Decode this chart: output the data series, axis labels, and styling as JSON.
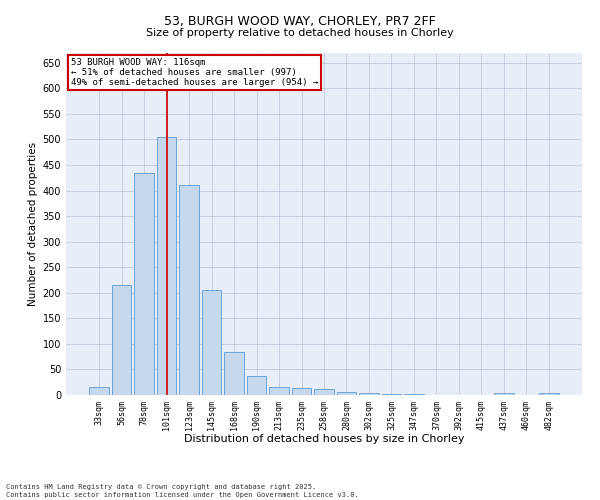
{
  "title": "53, BURGH WOOD WAY, CHORLEY, PR7 2FF",
  "subtitle": "Size of property relative to detached houses in Chorley",
  "xlabel": "Distribution of detached houses by size in Chorley",
  "ylabel": "Number of detached properties",
  "categories": [
    "33sqm",
    "56sqm",
    "78sqm",
    "101sqm",
    "123sqm",
    "145sqm",
    "168sqm",
    "190sqm",
    "213sqm",
    "235sqm",
    "258sqm",
    "280sqm",
    "302sqm",
    "325sqm",
    "347sqm",
    "370sqm",
    "392sqm",
    "415sqm",
    "437sqm",
    "460sqm",
    "482sqm"
  ],
  "values": [
    15,
    215,
    435,
    505,
    410,
    205,
    85,
    37,
    15,
    13,
    11,
    5,
    3,
    1,
    1,
    0,
    0,
    0,
    4,
    0,
    4
  ],
  "bar_color": "#c5d8ed",
  "bar_edge_color": "#5b9bd5",
  "vline_x": 3,
  "annotation_line1": "53 BURGH WOOD WAY: 116sqm",
  "annotation_line2": "← 51% of detached houses are smaller (997)",
  "annotation_line3": "49% of semi-detached houses are larger (954) →",
  "annotation_box_color": "#ffffff",
  "annotation_box_edgecolor": "#cc0000",
  "vline_color": "#cc0000",
  "ylim": [
    0,
    670
  ],
  "yticks": [
    0,
    50,
    100,
    150,
    200,
    250,
    300,
    350,
    400,
    450,
    500,
    550,
    600,
    650
  ],
  "footnote1": "Contains HM Land Registry data © Crown copyright and database right 2025.",
  "footnote2": "Contains public sector information licensed under the Open Government Licence v3.0.",
  "bg_color": "#e8eef8",
  "fig_bg_color": "#ffffff",
  "title_fontsize": 9,
  "subtitle_fontsize": 8,
  "xlabel_fontsize": 8,
  "ylabel_fontsize": 7.5,
  "xtick_fontsize": 6,
  "ytick_fontsize": 7,
  "annotation_fontsize": 6.5,
  "footnote_fontsize": 5
}
